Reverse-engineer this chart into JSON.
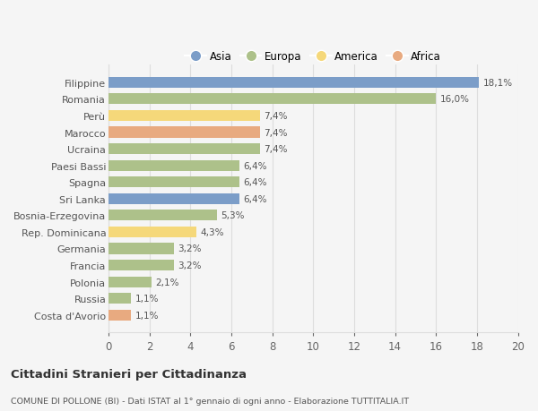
{
  "countries": [
    "Filippine",
    "Romania",
    "Perù",
    "Marocco",
    "Ucraina",
    "Paesi Bassi",
    "Spagna",
    "Sri Lanka",
    "Bosnia-Erzegovina",
    "Rep. Dominicana",
    "Germania",
    "Francia",
    "Polonia",
    "Russia",
    "Costa d'Avorio"
  ],
  "values": [
    18.1,
    16.0,
    7.4,
    7.4,
    7.4,
    6.4,
    6.4,
    6.4,
    5.3,
    4.3,
    3.2,
    3.2,
    2.1,
    1.1,
    1.1
  ],
  "labels": [
    "18,1%",
    "16,0%",
    "7,4%",
    "7,4%",
    "7,4%",
    "6,4%",
    "6,4%",
    "6,4%",
    "5,3%",
    "4,3%",
    "3,2%",
    "3,2%",
    "2,1%",
    "1,1%",
    "1,1%"
  ],
  "colors": [
    "#7b9dc8",
    "#adc18a",
    "#f5d87a",
    "#e8aa80",
    "#adc18a",
    "#adc18a",
    "#adc18a",
    "#7b9dc8",
    "#adc18a",
    "#f5d87a",
    "#adc18a",
    "#adc18a",
    "#adc18a",
    "#adc18a",
    "#e8aa80"
  ],
  "legend_labels": [
    "Asia",
    "Europa",
    "America",
    "Africa"
  ],
  "legend_colors": [
    "#7b9dc8",
    "#adc18a",
    "#f5d87a",
    "#e8aa80"
  ],
  "title": "Cittadini Stranieri per Cittadinanza",
  "subtitle": "COMUNE DI POLLONE (BI) - Dati ISTAT al 1° gennaio di ogni anno - Elaborazione TUTTITALIA.IT",
  "xlim": [
    0,
    20
  ],
  "xticks": [
    0,
    2,
    4,
    6,
    8,
    10,
    12,
    14,
    16,
    18,
    20
  ],
  "background_color": "#f5f5f5",
  "grid_color": "#dddddd"
}
